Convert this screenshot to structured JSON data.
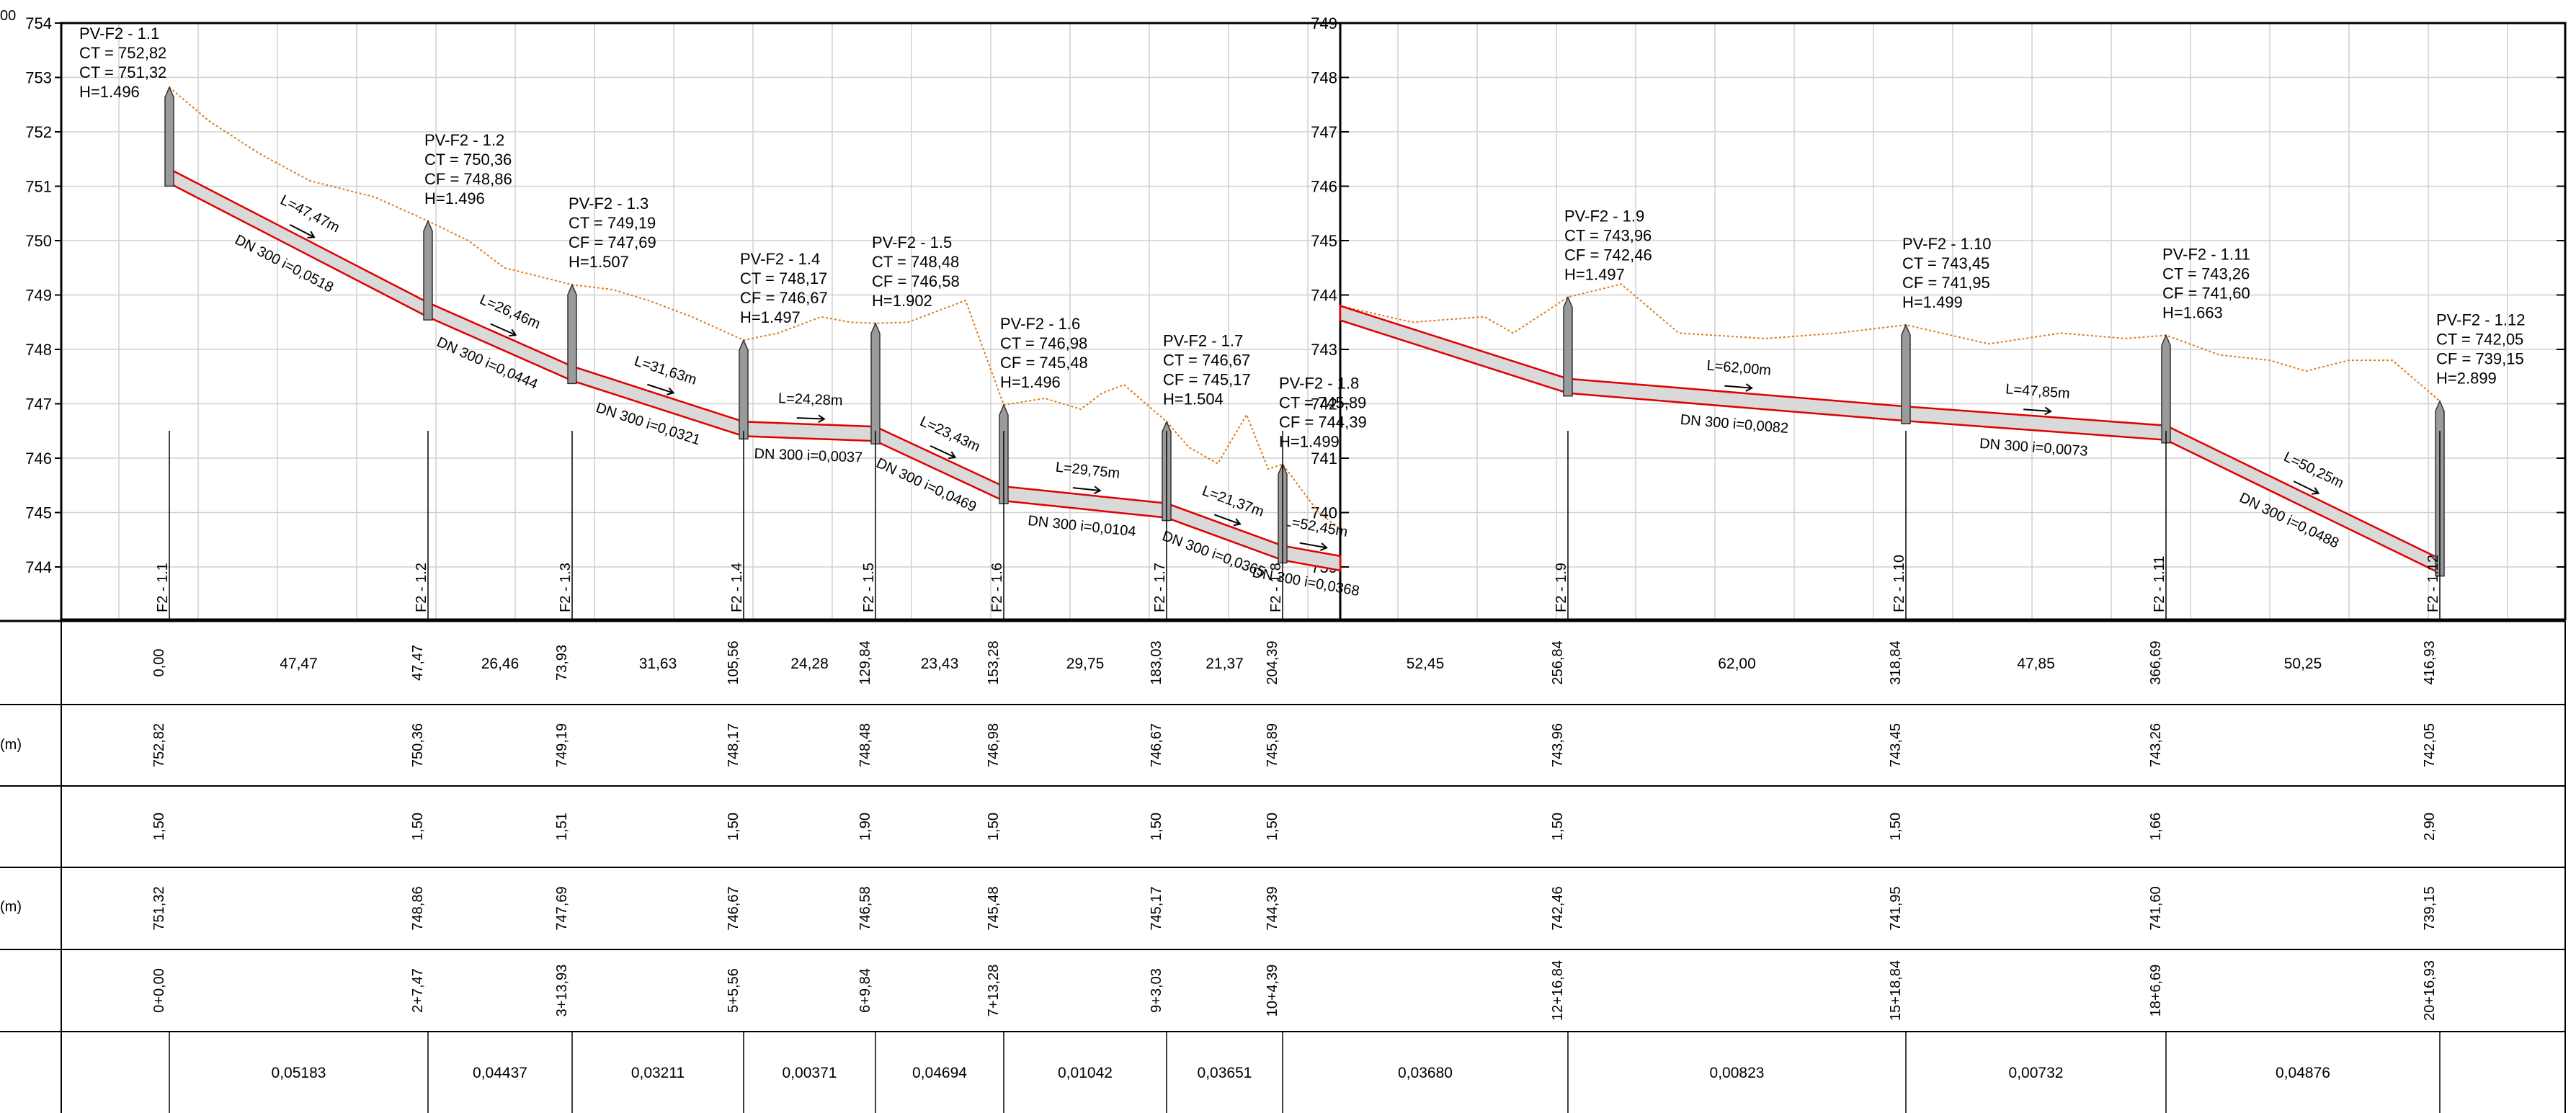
{
  "corner_label": "00",
  "left_axis": {
    "labels": [
      "754",
      "753",
      "752",
      "751",
      "750",
      "749",
      "748",
      "747",
      "746",
      "745",
      "744"
    ]
  },
  "right_axis": {
    "labels": [
      "749",
      "748",
      "747",
      "746",
      "745",
      "744",
      "743",
      "742",
      "741",
      "740",
      "739"
    ]
  },
  "row_unit_labels": [
    "(m)",
    "(m)"
  ],
  "profile_right": [
    743.8,
    742.5,
    742.6
  ],
  "wells": [
    {
      "name": "PV-F2 - 1.1",
      "ct": "CT = 752,82",
      "cf": "CT = 751,32",
      "h": "H=1.496",
      "station_label": "F2 - 1.1",
      "dist": "0,00",
      "ct_val": "752,82",
      "depth": "1,50",
      "cf_val": "751,32",
      "chain": "0+0,00",
      "top": 752.82,
      "inv": 751.32
    },
    {
      "name": "PV-F2 - 1.2",
      "ct": "CT = 750,36",
      "cf": "CF = 748,86",
      "h": "H=1.496",
      "station_label": "F2 - 1.2",
      "dist": "47,47",
      "ct_val": "750,36",
      "depth": "1,50",
      "cf_val": "748,86",
      "chain": "2+7,47",
      "top": 750.36,
      "inv": 748.86
    },
    {
      "name": "PV-F2 - 1.3",
      "ct": "CT = 749,19",
      "cf": "CF = 747,69",
      "h": "H=1.507",
      "station_label": "F2 - 1.3",
      "dist": "73,93",
      "ct_val": "749,19",
      "depth": "1,51",
      "cf_val": "747,69",
      "chain": "3+13,93",
      "top": 749.19,
      "inv": 747.69
    },
    {
      "name": "PV-F2 - 1.4",
      "ct": "CT = 748,17",
      "cf": "CF = 746,67",
      "h": "H=1.497",
      "station_label": "F2 - 1.4",
      "dist": "105,56",
      "ct_val": "748,17",
      "depth": "1,50",
      "cf_val": "746,67",
      "chain": "5+5,56",
      "top": 748.17,
      "inv": 746.67
    },
    {
      "name": "PV-F2 - 1.5",
      "ct": "CT = 748,48",
      "cf": "CF = 746,58",
      "h": "H=1.902",
      "station_label": "F2 - 1.5",
      "dist": "129,84",
      "ct_val": "748,48",
      "depth": "1,90",
      "cf_val": "746,58",
      "chain": "6+9,84",
      "top": 748.48,
      "inv": 746.58
    },
    {
      "name": "PV-F2 - 1.6",
      "ct": "CT = 746,98",
      "cf": "CF = 745,48",
      "h": "H=1.496",
      "station_label": "F2 - 1.6",
      "dist": "153,28",
      "ct_val": "746,98",
      "depth": "1,50",
      "cf_val": "745,48",
      "chain": "7+13,28",
      "top": 746.98,
      "inv": 745.48
    },
    {
      "name": "PV-F2 - 1.7",
      "ct": "CT = 746,67",
      "cf": "CF = 745,17",
      "h": "H=1.504",
      "station_label": "F2 - 1.7",
      "dist": "183,03",
      "ct_val": "746,67",
      "depth": "1,50",
      "cf_val": "745,17",
      "chain": "9+3,03",
      "top": 746.67,
      "inv": 745.17
    },
    {
      "name": "PV-F2 - 1.8",
      "ct": "CT = 745,89",
      "cf": "CF = 744,39",
      "h": "H=1.499",
      "station_label": "F2 - 1.8",
      "dist": "204,39",
      "ct_val": "745,89",
      "depth": "1,50",
      "cf_val": "744,39",
      "chain": "10+4,39",
      "top": 745.89,
      "inv": 744.39
    },
    {
      "name": "PV-F2 - 1.9",
      "ct": "CT = 743,96",
      "cf": "CF = 742,46",
      "h": "H=1.497",
      "station_label": "F2 - 1.9",
      "dist": "256,84",
      "ct_val": "743,96",
      "depth": "1,50",
      "cf_val": "742,46",
      "chain": "12+16,84",
      "top": 743.96,
      "inv": 742.46
    },
    {
      "name": "PV-F2 - 1.10",
      "ct": "CT = 743,45",
      "cf": "CF = 741,95",
      "h": "H=1.499",
      "station_label": "F2 - 1.10",
      "dist": "318,84",
      "ct_val": "743,45",
      "depth": "1,50",
      "cf_val": "741,95",
      "chain": "15+18,84",
      "top": 743.45,
      "inv": 741.95
    },
    {
      "name": "PV-F2 - 1.11",
      "ct": "CT = 743,26",
      "cf": "CF = 741,60",
      "h": "H=1.663",
      "station_label": "F2 - 1.11",
      "dist": "366,69",
      "ct_val": "743,26",
      "depth": "1,66",
      "cf_val": "741,60",
      "chain": "18+6,69",
      "top": 743.26,
      "inv": 741.6
    },
    {
      "name": "PV-F2 - 1.12",
      "ct": "CT = 742,05",
      "cf": "CF = 739,15",
      "h": "H=2.899",
      "station_label": "F2 - 1.12",
      "dist": "416,93",
      "ct_val": "742,05",
      "depth": "2,90",
      "cf_val": "739,15",
      "chain": "20+16,93",
      "top": 742.05,
      "inv": 739.15
    }
  ],
  "segments": [
    {
      "length": "L=47,47m",
      "spec": "DN 300  i=0,0518",
      "dist": "47,47",
      "slope": "0,05183"
    },
    {
      "length": "L=26,46m",
      "spec": "DN 300  i=0,0444",
      "dist": "26,46",
      "slope": "0,04437"
    },
    {
      "length": "L=31,63m",
      "spec": "DN 300  i=0,0321",
      "dist": "31,63",
      "slope": "0,03211"
    },
    {
      "length": "L=24,28m",
      "spec": "DN 300  i=0,0037",
      "dist": "24,28",
      "slope": "0,00371"
    },
    {
      "length": "L=23,43m",
      "spec": "DN 300  i=0,0469",
      "dist": "23,43",
      "slope": "0,04694"
    },
    {
      "length": "L=29,75m",
      "spec": "DN 300  i=0,0104",
      "dist": "29,75",
      "slope": "0,01042"
    },
    {
      "length": "L=21,37m",
      "spec": "DN 300  i=0,0365",
      "dist": "21,37",
      "slope": "0,03651"
    },
    {
      "length": "L=52,45m",
      "spec": "DN 300  i=0,0368",
      "dist": "52,45",
      "slope": "0,03680"
    },
    {
      "length": "L=62,00m",
      "spec": "DN 300  i=0,0082",
      "dist": "62,00",
      "slope": "0,00823"
    },
    {
      "length": "L=47,85m",
      "spec": "DN 300  i=0,0073",
      "dist": "47,85",
      "slope": "0,00732"
    },
    {
      "length": "L=50,25m",
      "spec": "DN 300  i=0,0488",
      "dist": "50,25",
      "slope": "0,04876"
    }
  ],
  "colors": {
    "pipe_edge": "#e00000",
    "pipe_fill": "#d9d9d9",
    "terrain": "#e07b1a",
    "grid": "#d0d0d0",
    "axis": "#000000",
    "well": "#9a9a9a"
  }
}
